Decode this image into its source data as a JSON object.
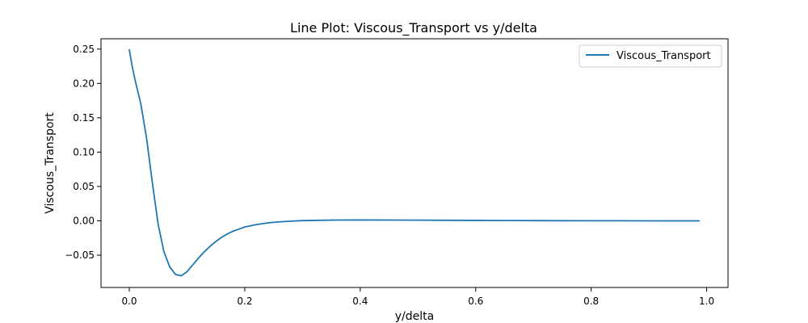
{
  "chart_data": {
    "type": "line",
    "title": "Line Plot: Viscous_Transport vs y/delta",
    "xlabel": "y/delta",
    "ylabel": "Viscous_Transport",
    "xlim": [
      -0.049,
      1.037
    ],
    "ylim": [
      -0.097,
      0.265
    ],
    "xticks": [
      0.0,
      0.2,
      0.4,
      0.6,
      0.8,
      1.0
    ],
    "xtick_labels": [
      "0.0",
      "0.2",
      "0.4",
      "0.6",
      "0.8",
      "1.0"
    ],
    "yticks": [
      -0.05,
      0.0,
      0.05,
      0.1,
      0.15,
      0.2,
      0.25
    ],
    "ytick_labels": [
      "−0.05",
      "0.00",
      "0.05",
      "0.10",
      "0.15",
      "0.20",
      "0.25"
    ],
    "grid": false,
    "legend": "top-right",
    "series": [
      {
        "name": "Viscous_Transport",
        "color": "#1f77b4",
        "x": [
          0.0,
          0.005,
          0.01,
          0.02,
          0.03,
          0.04,
          0.05,
          0.06,
          0.07,
          0.08,
          0.09,
          0.1,
          0.11,
          0.12,
          0.13,
          0.14,
          0.15,
          0.16,
          0.17,
          0.18,
          0.19,
          0.2,
          0.22,
          0.24,
          0.26,
          0.28,
          0.3,
          0.33,
          0.36,
          0.4,
          0.45,
          0.5,
          0.55,
          0.6,
          0.65,
          0.7,
          0.75,
          0.8,
          0.85,
          0.9,
          0.95,
          0.987
        ],
        "y": [
          0.249,
          0.225,
          0.205,
          0.17,
          0.12,
          0.055,
          -0.005,
          -0.045,
          -0.067,
          -0.078,
          -0.08,
          -0.074,
          -0.064,
          -0.054,
          -0.045,
          -0.037,
          -0.03,
          -0.024,
          -0.019,
          -0.015,
          -0.012,
          -0.009,
          -0.0055,
          -0.003,
          -0.0015,
          -0.0005,
          0.0003,
          0.0008,
          0.0011,
          0.0012,
          0.0011,
          0.001,
          0.0008,
          0.0006,
          0.0004,
          0.0003,
          0.0002,
          0.0001,
          0.0001,
          0.0,
          0.0,
          0.0
        ]
      }
    ]
  }
}
